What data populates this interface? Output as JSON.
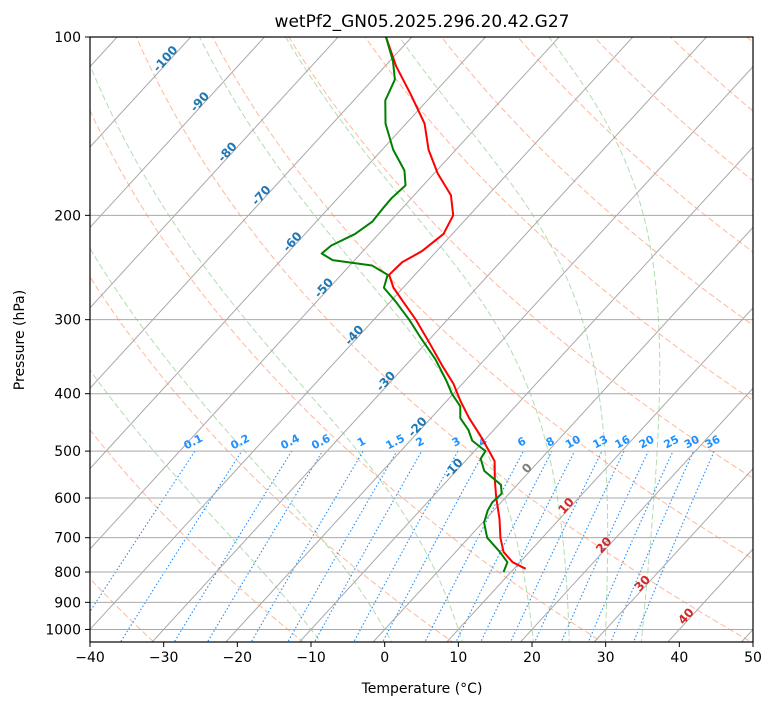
{
  "chart_data": {
    "type": "skew-t",
    "title": "wetPf2_GN05.2025.296.20.42.G27",
    "xlabel": "Temperature (°C)",
    "ylabel": "Pressure (hPa)",
    "xlim": [
      -40,
      50
    ],
    "ylim_hpa": [
      1050,
      100
    ],
    "x_ticks": [
      -40,
      -30,
      -20,
      -10,
      0,
      10,
      20,
      30,
      40,
      50
    ],
    "y_ticks": [
      100,
      200,
      300,
      400,
      500,
      600,
      700,
      800,
      900,
      1000
    ],
    "skew_deg_c_per_log_unit": 32,
    "colors": {
      "temperature": "#ff0000",
      "dewpoint": "#008000",
      "isotherm": "#a9a9a9",
      "isobar": "#a9a9a9",
      "dry_adiabat": "#ffa07a",
      "moist_adiabat": "#98d098",
      "mixing_ratio": "#1e90ff",
      "label_blue": "#1f77b4",
      "label_red": "#d62728",
      "label_gray": "#7f7f7f",
      "frame": "#000000",
      "reference_curve": "#d2b48c"
    },
    "dry_adiabat_thetas_k": [
      200,
      220,
      240,
      260,
      280,
      300,
      320,
      340,
      360,
      380,
      400,
      420,
      440,
      460,
      480,
      500,
      520
    ],
    "moist_adiabat_start_c_at_1000": [
      -10,
      0,
      10,
      20,
      25,
      30,
      35
    ],
    "mixing_ratio_gkg": [
      0.1,
      0.2,
      0.4,
      0.6,
      1,
      1.5,
      2,
      3,
      4,
      6,
      8,
      10,
      13,
      16,
      20,
      25,
      30,
      36
    ],
    "mixing_ratio_labels": [
      "0.1",
      "0.2",
      "0.4",
      "0.6",
      "1",
      "1.5",
      "2",
      "3",
      "4",
      "6",
      "8",
      "10",
      "13",
      "16",
      "20",
      "25",
      "30",
      "36"
    ],
    "isotherm_labels": [
      {
        "text": "-100",
        "t": -100,
        "p": 110
      },
      {
        "text": "-90",
        "t": -90,
        "p": 130
      },
      {
        "text": "-80",
        "t": -80,
        "p": 158
      },
      {
        "text": "-70",
        "t": -70,
        "p": 187
      },
      {
        "text": "-60",
        "t": -60,
        "p": 224
      },
      {
        "text": "-50",
        "t": -50,
        "p": 268
      },
      {
        "text": "-40",
        "t": -40,
        "p": 322
      },
      {
        "text": "-30",
        "t": -30,
        "p": 385
      },
      {
        "text": "-20",
        "t": -20,
        "p": 460
      },
      {
        "text": "-10",
        "t": -10,
        "p": 540
      },
      {
        "text": "0",
        "t": 0,
        "p": 540
      },
      {
        "text": "10",
        "t": 10,
        "p": 625
      },
      {
        "text": "20",
        "t": 20,
        "p": 728
      },
      {
        "text": "30",
        "t": 30,
        "p": 845
      },
      {
        "text": "40",
        "t": 40,
        "p": 960
      }
    ],
    "temperature_profile": [
      {
        "p": 790,
        "t": 11.6
      },
      {
        "p": 770,
        "t": 9.0
      },
      {
        "p": 740,
        "t": 6.5
      },
      {
        "p": 700,
        "t": 4.3
      },
      {
        "p": 650,
        "t": 1.8
      },
      {
        "p": 600,
        "t": -1.2
      },
      {
        "p": 560,
        "t": -3.6
      },
      {
        "p": 520,
        "t": -6.0
      },
      {
        "p": 500,
        "t": -8.0
      },
      {
        "p": 470,
        "t": -11.2
      },
      {
        "p": 440,
        "t": -14.8
      },
      {
        "p": 410,
        "t": -18.3
      },
      {
        "p": 385,
        "t": -21.2
      },
      {
        "p": 360,
        "t": -24.8
      },
      {
        "p": 330,
        "t": -29.3
      },
      {
        "p": 300,
        "t": -34.3
      },
      {
        "p": 280,
        "t": -38.2
      },
      {
        "p": 265,
        "t": -41.3
      },
      {
        "p": 252,
        "t": -43.5
      },
      {
        "p": 240,
        "t": -43.3
      },
      {
        "p": 230,
        "t": -42.0
      },
      {
        "p": 215,
        "t": -41.2
      },
      {
        "p": 200,
        "t": -42.2
      },
      {
        "p": 185,
        "t": -45.0
      },
      {
        "p": 170,
        "t": -49.5
      },
      {
        "p": 155,
        "t": -53.7
      },
      {
        "p": 140,
        "t": -57.5
      },
      {
        "p": 125,
        "t": -63.0
      },
      {
        "p": 112,
        "t": -68.5
      },
      {
        "p": 100,
        "t": -73.5
      }
    ],
    "dewpoint_profile": [
      {
        "p": 800,
        "t": 9.0
      },
      {
        "p": 770,
        "t": 8.3
      },
      {
        "p": 740,
        "t": 6.0
      },
      {
        "p": 700,
        "t": 2.5
      },
      {
        "p": 660,
        "t": 0.2
      },
      {
        "p": 630,
        "t": -0.8
      },
      {
        "p": 610,
        "t": -1.2
      },
      {
        "p": 590,
        "t": -1.0
      },
      {
        "p": 570,
        "t": -2.2
      },
      {
        "p": 540,
        "t": -6.2
      },
      {
        "p": 515,
        "t": -8.2
      },
      {
        "p": 500,
        "t": -8.5
      },
      {
        "p": 480,
        "t": -11.6
      },
      {
        "p": 460,
        "t": -13.5
      },
      {
        "p": 440,
        "t": -16.0
      },
      {
        "p": 420,
        "t": -17.5
      },
      {
        "p": 400,
        "t": -20.2
      },
      {
        "p": 380,
        "t": -22.6
      },
      {
        "p": 350,
        "t": -26.7
      },
      {
        "p": 320,
        "t": -31.7
      },
      {
        "p": 300,
        "t": -35.2
      },
      {
        "p": 280,
        "t": -39.2
      },
      {
        "p": 265,
        "t": -42.6
      },
      {
        "p": 252,
        "t": -43.7
      },
      {
        "p": 243,
        "t": -47.0
      },
      {
        "p": 238,
        "t": -53.0
      },
      {
        "p": 232,
        "t": -55.3
      },
      {
        "p": 225,
        "t": -55.0
      },
      {
        "p": 215,
        "t": -53.2
      },
      {
        "p": 205,
        "t": -52.4
      },
      {
        "p": 195,
        "t": -52.6
      },
      {
        "p": 187,
        "t": -52.7
      },
      {
        "p": 178,
        "t": -52.4
      },
      {
        "p": 168,
        "t": -54.4
      },
      {
        "p": 155,
        "t": -58.5
      },
      {
        "p": 140,
        "t": -62.8
      },
      {
        "p": 128,
        "t": -65.7
      },
      {
        "p": 118,
        "t": -67.0
      },
      {
        "p": 110,
        "t": -69.5
      },
      {
        "p": 100,
        "t": -73.5
      }
    ]
  }
}
